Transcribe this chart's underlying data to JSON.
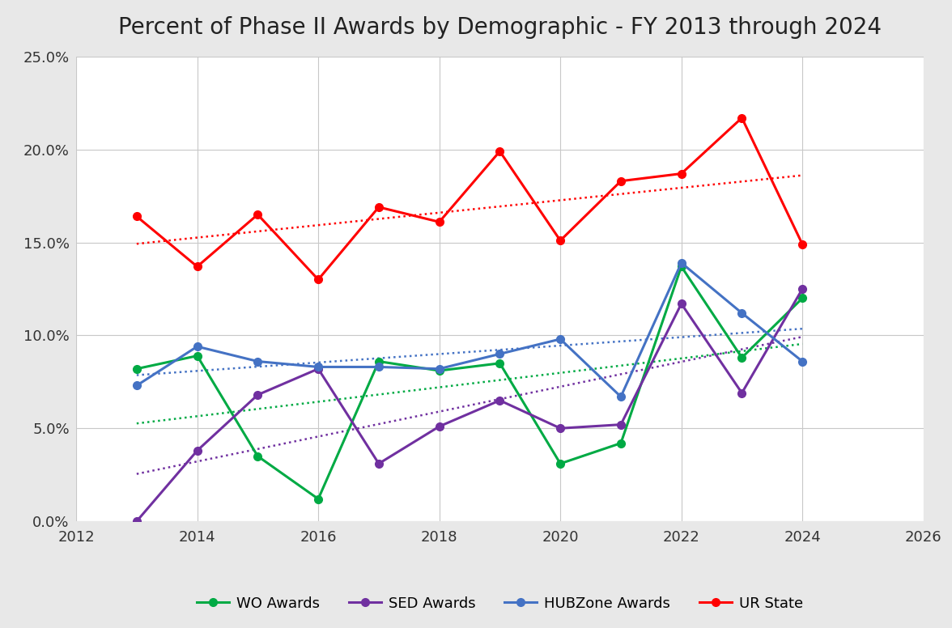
{
  "title": "Percent of Phase II Awards by Demographic - FY 2013 through 2024",
  "years": [
    2013,
    2014,
    2015,
    2016,
    2017,
    2018,
    2019,
    2020,
    2021,
    2022,
    2023,
    2024
  ],
  "WO": [
    8.2,
    8.9,
    3.5,
    1.2,
    8.6,
    8.1,
    8.5,
    3.1,
    4.2,
    13.7,
    8.8,
    12.0
  ],
  "SED": [
    0.0,
    3.8,
    6.8,
    8.2,
    3.1,
    5.1,
    6.5,
    5.0,
    5.2,
    11.7,
    6.9,
    12.5
  ],
  "HUBZone": [
    7.3,
    9.4,
    8.6,
    8.3,
    8.3,
    8.2,
    9.0,
    9.8,
    6.7,
    13.9,
    11.2,
    8.6
  ],
  "UR": [
    16.4,
    13.7,
    16.5,
    13.0,
    16.9,
    16.1,
    19.9,
    15.1,
    18.3,
    18.7,
    21.7,
    14.9
  ],
  "WO_color": "#00aa44",
  "SED_color": "#7030a0",
  "HUBZone_color": "#4472c4",
  "UR_color": "#ff0000",
  "background_color": "#e8e8e8",
  "plot_background": "#ffffff",
  "xlim": [
    2012,
    2026
  ],
  "ylim": [
    0.0,
    0.25
  ],
  "yticks": [
    0.0,
    0.05,
    0.1,
    0.15,
    0.2,
    0.25
  ],
  "xticks": [
    2012,
    2014,
    2016,
    2018,
    2020,
    2022,
    2024,
    2026
  ],
  "title_fontsize": 20,
  "tick_fontsize": 13,
  "legend_fontsize": 13,
  "line_width": 2.2,
  "marker_size": 7,
  "trend_linewidth": 1.8
}
